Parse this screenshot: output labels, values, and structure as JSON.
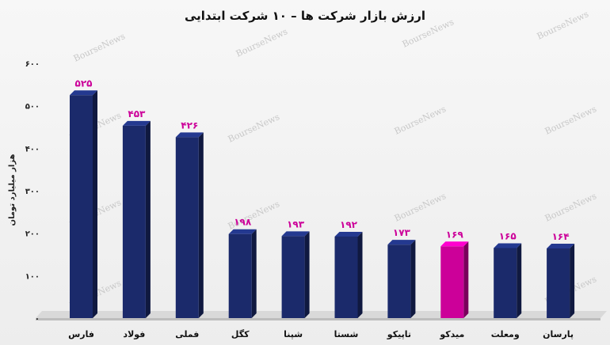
{
  "chart_data": {
    "type": "bar",
    "title": "ارزش بازار شرکت ها – ۱۰ شرکت ابتدایی",
    "ylabel": "هزار میلیارد تومان",
    "xlabel": "",
    "ylim": [
      0,
      600
    ],
    "yticks": [
      0,
      100,
      200,
      300,
      400,
      500,
      600
    ],
    "ytick_labels": [
      "۰",
      "۱۰۰",
      "۲۰۰",
      "۳۰۰",
      "۴۰۰",
      "۵۰۰",
      "۶۰۰"
    ],
    "categories": [
      "فارس",
      "فولاد",
      "فملی",
      "کگل",
      "شپنا",
      "شستا",
      "تاپیکو",
      "میدکو",
      "ومعلت",
      "پارسان"
    ],
    "values": [
      525,
      453,
      426,
      198,
      193,
      192,
      173,
      169,
      165,
      164
    ],
    "value_labels": [
      "۵۲۵",
      "۴۵۳",
      "۴۲۶",
      "۱۹۸",
      "۱۹۳",
      "۱۹۲",
      "۱۷۳",
      "۱۶۹",
      "۱۶۵",
      "۱۶۴"
    ],
    "bar_colors": [
      "#1b2a6b",
      "#1b2a6b",
      "#1b2a6b",
      "#1b2a6b",
      "#1b2a6b",
      "#1b2a6b",
      "#1b2a6b",
      "#cc0099",
      "#1b2a6b",
      "#1b2a6b"
    ],
    "value_label_color": "#cc0099",
    "watermark": "BourseNews",
    "grid": false,
    "legend": "none"
  }
}
